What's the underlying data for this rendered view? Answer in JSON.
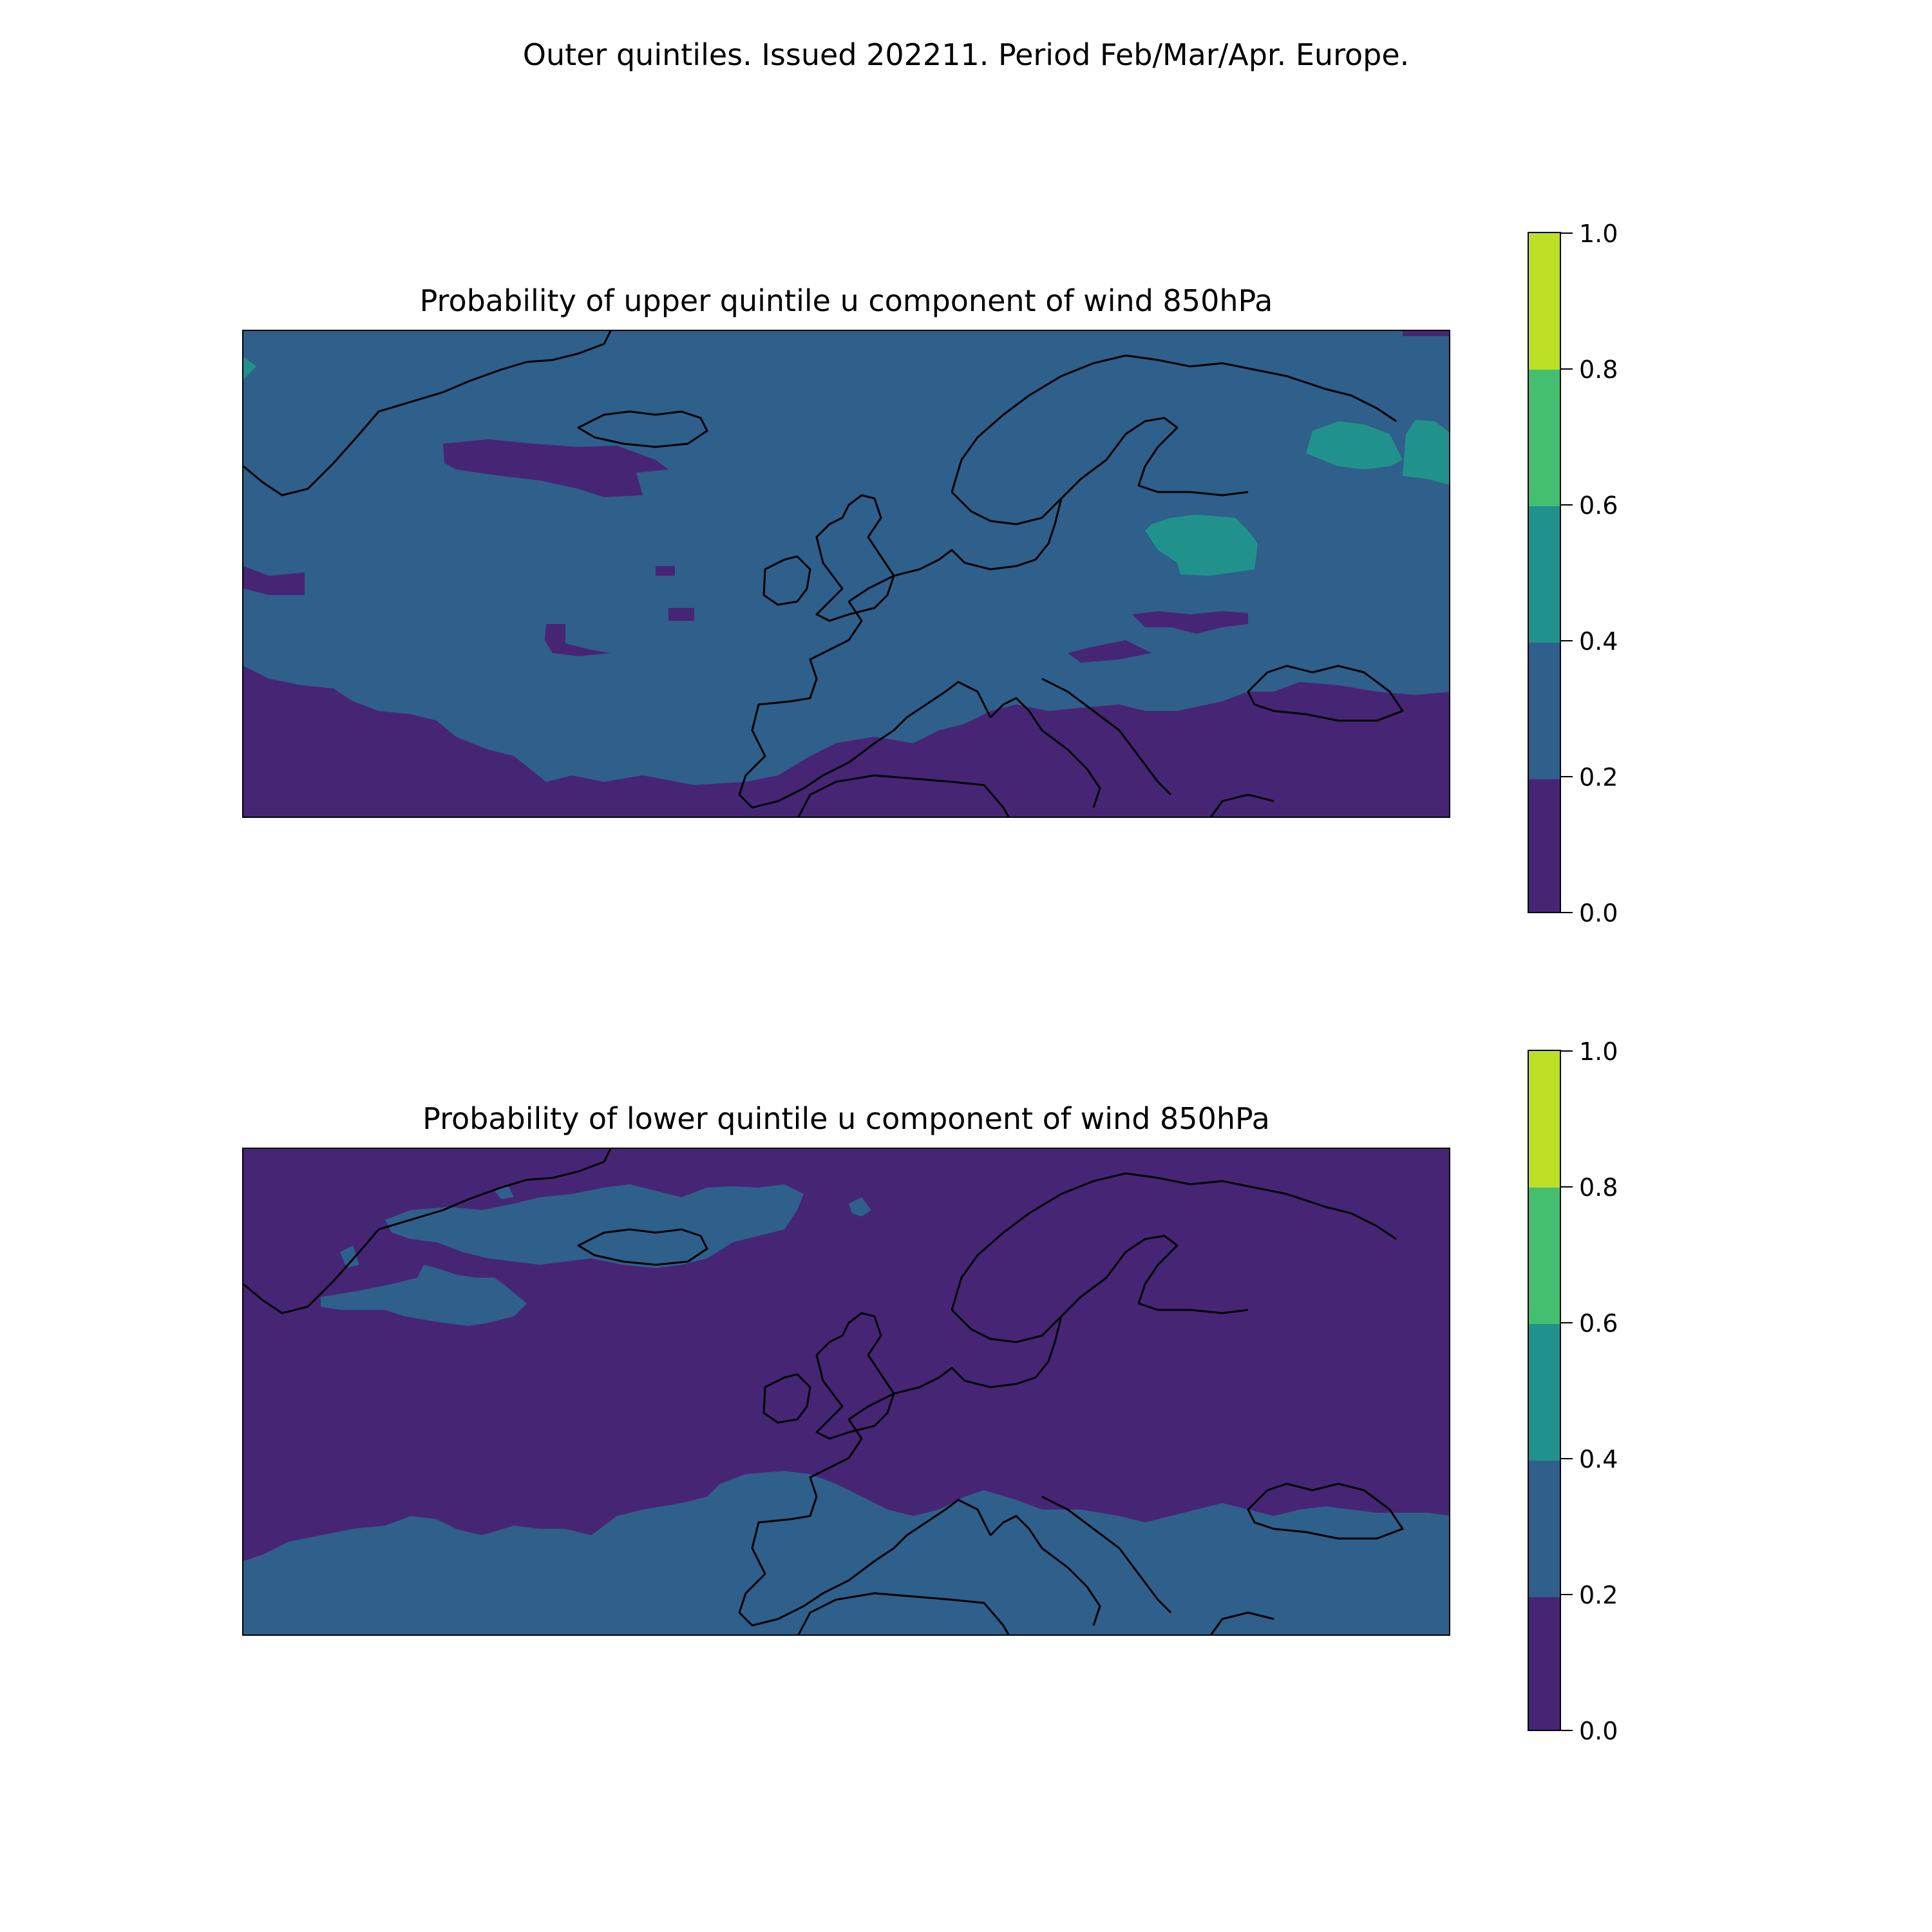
{
  "figure": {
    "suptitle": "Outer quintiles. Issued 202211. Period Feb/Mar/Apr. Europe."
  },
  "colors": {
    "level_0_0.2": "#472575",
    "level_0.2_0.4": "#2f5f8b",
    "level_0.4_0.6": "#21918c",
    "level_0.6_0.8": "#44bf70",
    "level_0.8_1.0": "#bddf26",
    "coastline": "#000000"
  },
  "panels": [
    {
      "title": "Probability of upper quintile u component of wind 850hPa",
      "background_level": "0.2-0.4",
      "colorbar": {
        "ticks": [
          "0.0",
          "0.2",
          "0.4",
          "0.6",
          "0.8",
          "1.0"
        ],
        "levels": [
          0.0,
          0.2,
          0.4,
          0.6,
          0.8,
          1.0
        ]
      }
    },
    {
      "title": "Probability of lower quintile u component of wind 850hPa",
      "background_level": "0.0-0.2",
      "colorbar": {
        "ticks": [
          "0.0",
          "0.2",
          "0.4",
          "0.6",
          "0.8",
          "1.0"
        ],
        "levels": [
          0.0,
          0.2,
          0.4,
          0.6,
          0.8,
          1.0
        ]
      }
    }
  ]
}
